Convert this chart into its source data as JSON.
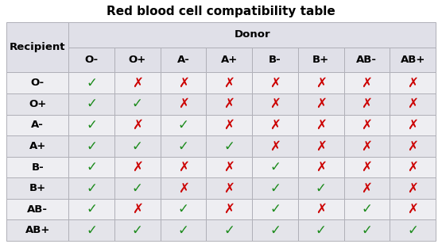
{
  "title": "Red blood cell compatibility table",
  "recipient_label": "Recipient",
  "donor_label": "Donor",
  "blood_types": [
    "O-",
    "O+",
    "A-",
    "A+",
    "B-",
    "B+",
    "AB-",
    "AB+"
  ],
  "compatibility": [
    [
      1,
      0,
      0,
      0,
      0,
      0,
      0,
      0
    ],
    [
      1,
      1,
      0,
      0,
      0,
      0,
      0,
      0
    ],
    [
      1,
      0,
      1,
      0,
      0,
      0,
      0,
      0
    ],
    [
      1,
      1,
      1,
      1,
      0,
      0,
      0,
      0
    ],
    [
      1,
      0,
      0,
      0,
      1,
      0,
      0,
      0
    ],
    [
      1,
      1,
      0,
      0,
      1,
      1,
      0,
      0
    ],
    [
      1,
      0,
      1,
      0,
      1,
      0,
      1,
      0
    ],
    [
      1,
      1,
      1,
      1,
      1,
      1,
      1,
      1
    ]
  ],
  "check_color": "#1a8a1a",
  "cross_color": "#cc0000",
  "header_bg": "#e0e0e8",
  "row_bg_light": "#eeeef2",
  "row_bg_dark": "#e4e4ea",
  "border_color": "#b0b0b8",
  "title_fontsize": 11,
  "header_fontsize": 9.5,
  "cell_fontsize": 12,
  "fig_width": 5.56,
  "fig_height": 3.08,
  "dpi": 100
}
